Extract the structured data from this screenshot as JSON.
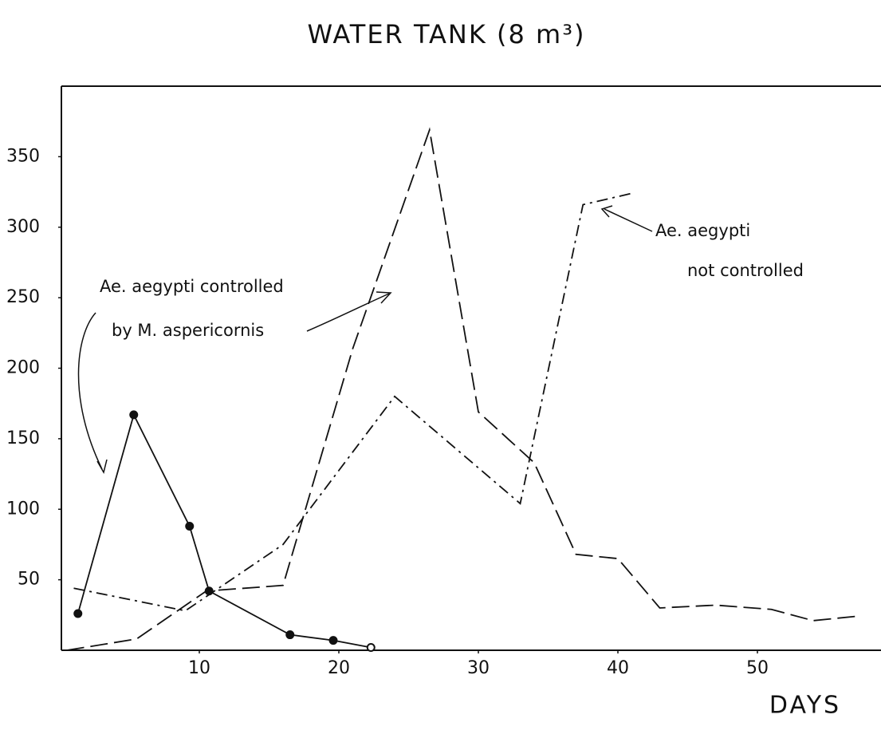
{
  "chart_data": {
    "type": "line",
    "title": "WATER TANK (8 m³)",
    "x_label": "DAYS",
    "xlim": [
      0,
      59
    ],
    "ylim": [
      0,
      400
    ],
    "xticks": [
      10,
      20,
      30,
      40,
      50
    ],
    "yticks": [
      50,
      100,
      150,
      200,
      250,
      300,
      350
    ],
    "grid": false,
    "series": [
      {
        "color": "#111111",
        "linestyle": "solid",
        "marker": "circle",
        "x": [
          1.3,
          5.3,
          9.3,
          10.7,
          16.5,
          19.6,
          22.3
        ],
        "values": [
          26,
          167,
          88,
          42,
          11,
          7,
          2
        ]
      },
      {
        "color": "#111111",
        "linestyle": "dashed",
        "x": [
          0.5,
          5.5,
          10.5,
          16,
          21,
          26.5,
          30,
          34,
          37,
          40,
          43,
          47,
          51,
          54,
          57
        ],
        "values": [
          0,
          8,
          42,
          46,
          214,
          369,
          169,
          133,
          68,
          65,
          30,
          32,
          29,
          21,
          24
        ]
      },
      {
        "color": "#111111",
        "linestyle": "dashdot",
        "x": [
          1,
          9,
          16,
          24,
          33,
          37.5,
          41
        ],
        "values": [
          44,
          28,
          75,
          180,
          104,
          316,
          324
        ]
      }
    ],
    "annotations": [
      {
        "lines": [
          "Ae. aegypti  controlled",
          "by  M. aspericornis"
        ]
      },
      {
        "lines": [
          "Ae. aegypti",
          "not  controlled"
        ]
      }
    ]
  }
}
